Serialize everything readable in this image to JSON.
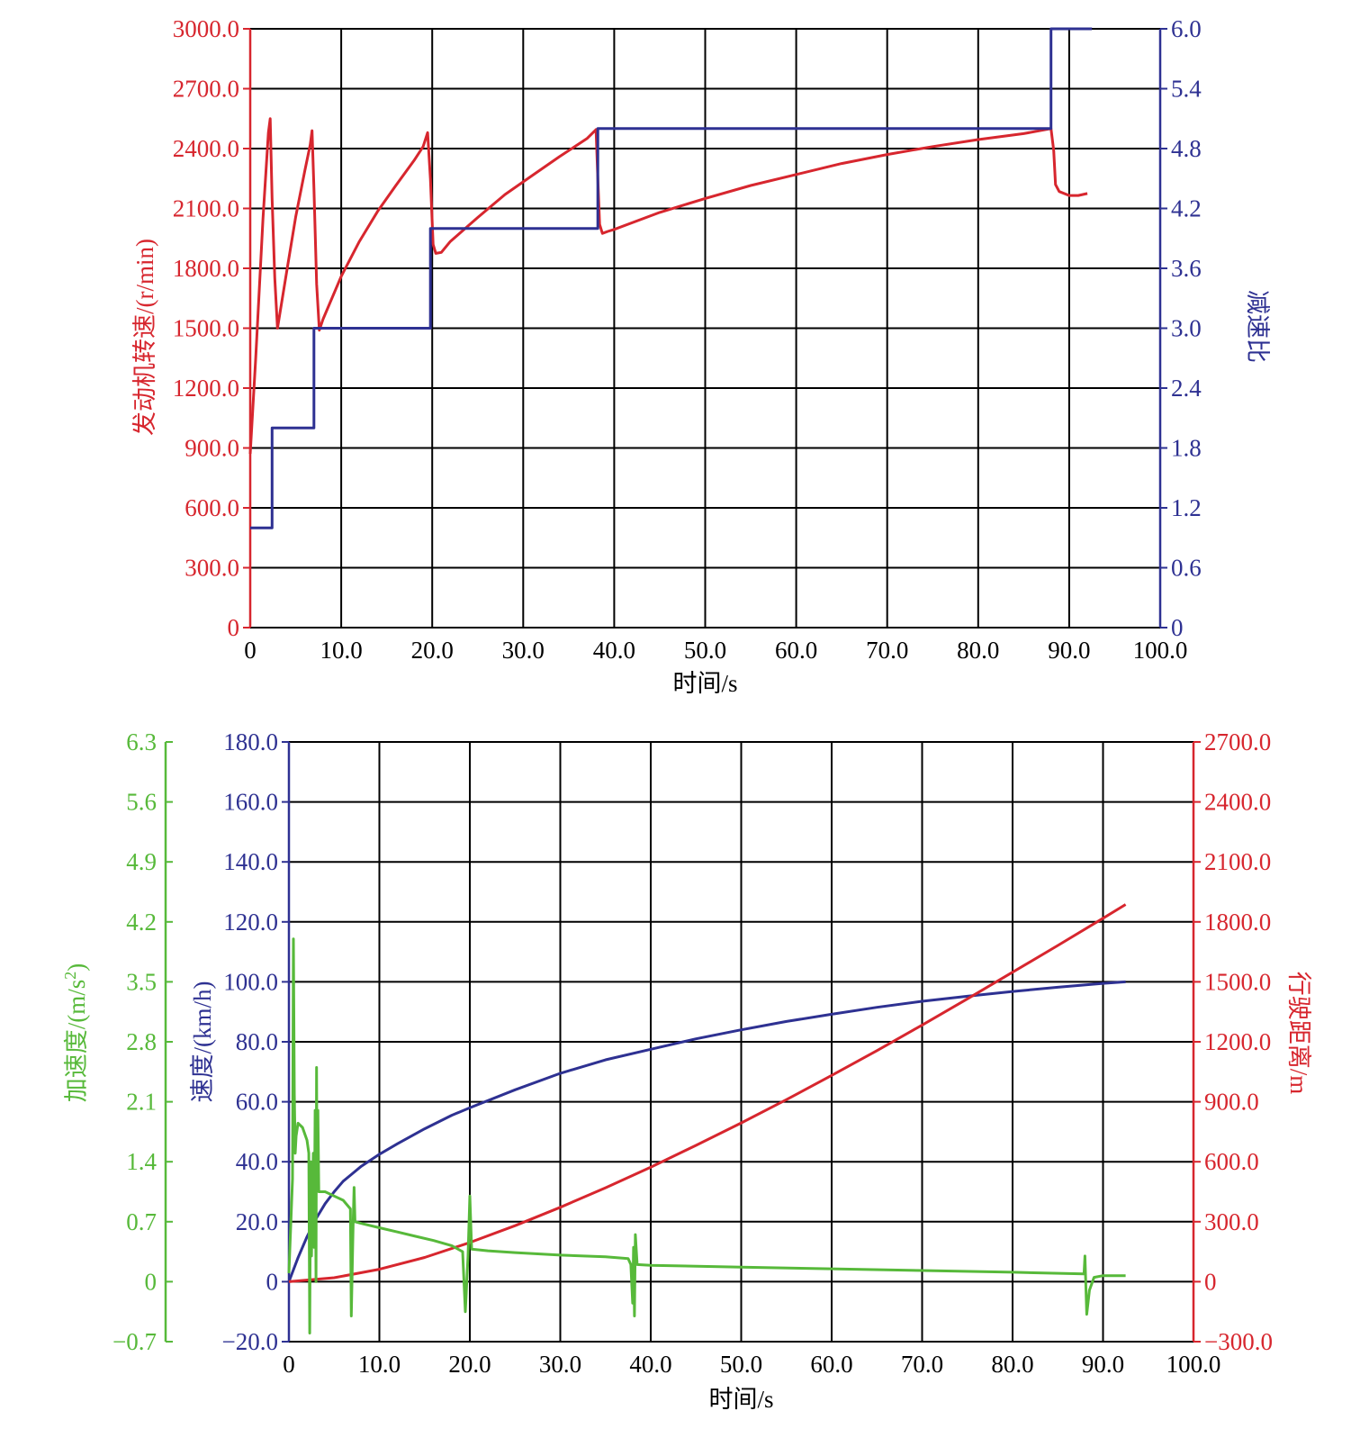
{
  "colors": {
    "red": "#d7262e",
    "blue": "#2e3192",
    "green": "#57b93a",
    "grid": "#000000"
  },
  "chart_data": [
    {
      "type": "line",
      "xlabel": "时间/s",
      "xlim": [
        0,
        100
      ],
      "x_ticks": [
        "0",
        "10.0",
        "20.0",
        "30.0",
        "40.0",
        "50.0",
        "60.0",
        "70.0",
        "80.0",
        "90.0",
        "100.0"
      ],
      "grid": true,
      "axes": {
        "left": {
          "label": "发动机转速/(r/min)",
          "color": "#d7262e",
          "lim": [
            0,
            3000
          ],
          "ticks": [
            "0",
            "300.0",
            "600.0",
            "900.0",
            "1200.0",
            "1500.0",
            "1800.0",
            "2100.0",
            "2400.0",
            "2700.0",
            "3000.0"
          ]
        },
        "right": {
          "label": "减速比",
          "color": "#2e3192",
          "lim": [
            0,
            6
          ],
          "ticks": [
            "0",
            "0.6",
            "1.2",
            "1.8",
            "2.4",
            "3.0",
            "3.6",
            "4.2",
            "4.8",
            "5.4",
            "6.0"
          ]
        }
      },
      "series": [
        {
          "axis": "left",
          "color": "#d7262e",
          "points": [
            [
              0,
              870
            ],
            [
              0.6,
              1350
            ],
            [
              1.4,
              2050
            ],
            [
              2.0,
              2480
            ],
            [
              2.2,
              2550
            ],
            [
              2.4,
              2150
            ],
            [
              2.7,
              1750
            ],
            [
              3.0,
              1500
            ],
            [
              4.0,
              1780
            ],
            [
              5.0,
              2060
            ],
            [
              6.0,
              2290
            ],
            [
              6.6,
              2420
            ],
            [
              6.8,
              2490
            ],
            [
              7.0,
              2200
            ],
            [
              7.3,
              1720
            ],
            [
              7.6,
              1490
            ],
            [
              8.0,
              1545
            ],
            [
              10.0,
              1760
            ],
            [
              12.0,
              1935
            ],
            [
              14.0,
              2085
            ],
            [
              16.0,
              2215
            ],
            [
              18.0,
              2340
            ],
            [
              19.0,
              2410
            ],
            [
              19.5,
              2480
            ],
            [
              19.8,
              2250
            ],
            [
              20.1,
              1920
            ],
            [
              20.4,
              1875
            ],
            [
              21.0,
              1880
            ],
            [
              22.0,
              1935
            ],
            [
              25.0,
              2055
            ],
            [
              28.0,
              2170
            ],
            [
              31.0,
              2265
            ],
            [
              34.0,
              2360
            ],
            [
              37.0,
              2450
            ],
            [
              38.0,
              2495
            ],
            [
              38.2,
              2250
            ],
            [
              38.4,
              2020
            ],
            [
              38.7,
              1975
            ],
            [
              39.3,
              1985
            ],
            [
              40.0,
              1995
            ],
            [
              45.0,
              2080
            ],
            [
              50.0,
              2150
            ],
            [
              55.0,
              2215
            ],
            [
              60.0,
              2270
            ],
            [
              65.0,
              2325
            ],
            [
              70.0,
              2370
            ],
            [
              75.0,
              2410
            ],
            [
              80.0,
              2445
            ],
            [
              85.0,
              2475
            ],
            [
              88.0,
              2500
            ],
            [
              88.3,
              2390
            ],
            [
              88.5,
              2220
            ],
            [
              88.9,
              2185
            ],
            [
              90.0,
              2165
            ],
            [
              91.0,
              2165
            ],
            [
              92.0,
              2175
            ]
          ]
        },
        {
          "axis": "right",
          "color": "#2e3192",
          "step": true,
          "points": [
            [
              0,
              1.0
            ],
            [
              2.4,
              1.0
            ],
            [
              2.4,
              2.0
            ],
            [
              7.0,
              2.0
            ],
            [
              7.0,
              3.0
            ],
            [
              19.8,
              3.0
            ],
            [
              19.8,
              4.0
            ],
            [
              38.2,
              4.0
            ],
            [
              38.2,
              5.0
            ],
            [
              88.0,
              5.0
            ],
            [
              88.0,
              6.0
            ],
            [
              92.5,
              6.0
            ]
          ]
        }
      ]
    },
    {
      "type": "line",
      "xlabel": "时间/s",
      "xlim": [
        0,
        100
      ],
      "x_ticks": [
        "0",
        "10.0",
        "20.0",
        "30.0",
        "40.0",
        "50.0",
        "60.0",
        "70.0",
        "80.0",
        "90.0",
        "100.0"
      ],
      "grid": true,
      "axes": {
        "outer_left": {
          "label_parts": [
            "加速度/(m/s",
            "2",
            ")"
          ],
          "color": "#57b93a",
          "lim": [
            -0.7,
            6.3
          ],
          "ticks": [
            "−0.7",
            "0",
            "0.7",
            "1.4",
            "2.1",
            "2.8",
            "3.5",
            "4.2",
            "4.9",
            "5.6",
            "6.3"
          ]
        },
        "left": {
          "label": "速度/(km/h)",
          "color": "#2e3192",
          "lim": [
            -20,
            180
          ],
          "ticks": [
            "−20.0",
            "0",
            "20.0",
            "40.0",
            "60.0",
            "80.0",
            "100.0",
            "120.0",
            "140.0",
            "160.0",
            "180.0"
          ]
        },
        "right": {
          "label": "行驶距离/m",
          "color": "#d7262e",
          "lim": [
            -300,
            2700
          ],
          "ticks": [
            "−300.0",
            "0",
            "300.0",
            "600.0",
            "900.0",
            "1200.0",
            "1500.0",
            "1800.0",
            "2100.0",
            "2400.0",
            "2700.0"
          ]
        }
      },
      "series": [
        {
          "axis": "left",
          "color": "#2e3192",
          "points": [
            [
              0,
              0
            ],
            [
              1,
              8
            ],
            [
              2,
              15
            ],
            [
              3,
              21
            ],
            [
              4,
              26
            ],
            [
              5,
              30
            ],
            [
              6,
              33.5
            ],
            [
              7,
              36
            ],
            [
              8,
              38.5
            ],
            [
              10,
              42.5
            ],
            [
              12,
              46
            ],
            [
              15,
              51
            ],
            [
              18,
              55.5
            ],
            [
              20,
              58
            ],
            [
              25,
              64
            ],
            [
              30,
              69.5
            ],
            [
              35,
              74
            ],
            [
              40,
              77.5
            ],
            [
              45,
              81
            ],
            [
              50,
              84
            ],
            [
              55,
              86.8
            ],
            [
              60,
              89.2
            ],
            [
              65,
              91.5
            ],
            [
              70,
              93.5
            ],
            [
              75,
              95.2
            ],
            [
              80,
              96.8
            ],
            [
              85,
              98.2
            ],
            [
              90,
              99.5
            ],
            [
              92.5,
              100
            ]
          ]
        },
        {
          "axis": "right",
          "color": "#d7262e",
          "points": [
            [
              0,
              0
            ],
            [
              5,
              20
            ],
            [
              10,
              62
            ],
            [
              15,
              121
            ],
            [
              20,
              196
            ],
            [
              25,
              280
            ],
            [
              30,
              372
            ],
            [
              35,
              470
            ],
            [
              40,
              573
            ],
            [
              45,
              682
            ],
            [
              50,
              794
            ],
            [
              55,
              911
            ],
            [
              60,
              1032
            ],
            [
              65,
              1156
            ],
            [
              70,
              1284
            ],
            [
              75,
              1415
            ],
            [
              80,
              1548
            ],
            [
              85,
              1682
            ],
            [
              90,
              1818
            ],
            [
              92.5,
              1887
            ]
          ]
        },
        {
          "axis": "outer_left",
          "color": "#57b93a",
          "points": [
            [
              0,
              0.1
            ],
            [
              0.4,
              1.2
            ],
            [
              0.5,
              4.0
            ],
            [
              0.6,
              2.2
            ],
            [
              0.7,
              1.5
            ],
            [
              0.8,
              1.7
            ],
            [
              1.0,
              1.85
            ],
            [
              1.5,
              1.8
            ],
            [
              2.0,
              1.65
            ],
            [
              2.2,
              1.5
            ],
            [
              2.3,
              -0.6
            ],
            [
              2.4,
              1.4
            ],
            [
              2.5,
              0.3
            ],
            [
              2.6,
              1.0
            ],
            [
              2.7,
              1.5
            ],
            [
              2.8,
              0.4
            ],
            [
              2.9,
              2.0
            ],
            [
              3.0,
              0.0
            ],
            [
              3.05,
              2.5
            ],
            [
              3.1,
              1.3
            ],
            [
              3.2,
              2.0
            ],
            [
              3.3,
              1.05
            ],
            [
              4.0,
              1.05
            ],
            [
              5.0,
              1.0
            ],
            [
              6.0,
              0.95
            ],
            [
              6.8,
              0.85
            ],
            [
              6.9,
              -0.4
            ],
            [
              7.1,
              0.7
            ],
            [
              7.2,
              1.1
            ],
            [
              7.3,
              0.7
            ],
            [
              8.0,
              0.68
            ],
            [
              10.0,
              0.63
            ],
            [
              12.0,
              0.58
            ],
            [
              14.0,
              0.53
            ],
            [
              16.0,
              0.48
            ],
            [
              18.0,
              0.42
            ],
            [
              19.2,
              0.35
            ],
            [
              19.5,
              -0.35
            ],
            [
              19.8,
              0.3
            ],
            [
              20.0,
              1.0
            ],
            [
              20.2,
              0.38
            ],
            [
              22.0,
              0.36
            ],
            [
              25.0,
              0.34
            ],
            [
              30.0,
              0.31
            ],
            [
              35.0,
              0.29
            ],
            [
              37.5,
              0.27
            ],
            [
              37.8,
              0.2
            ],
            [
              38.0,
              -0.25
            ],
            [
              38.1,
              0.4
            ],
            [
              38.2,
              -0.4
            ],
            [
              38.3,
              0.55
            ],
            [
              38.5,
              0.2
            ],
            [
              40.0,
              0.19
            ],
            [
              50.0,
              0.17
            ],
            [
              60.0,
              0.15
            ],
            [
              70.0,
              0.13
            ],
            [
              80.0,
              0.11
            ],
            [
              87.9,
              0.09
            ],
            [
              88.0,
              0.3
            ],
            [
              88.2,
              -0.38
            ],
            [
              88.5,
              -0.1
            ],
            [
              89.0,
              0.05
            ],
            [
              90.0,
              0.07
            ],
            [
              92.5,
              0.07
            ]
          ]
        }
      ]
    }
  ]
}
